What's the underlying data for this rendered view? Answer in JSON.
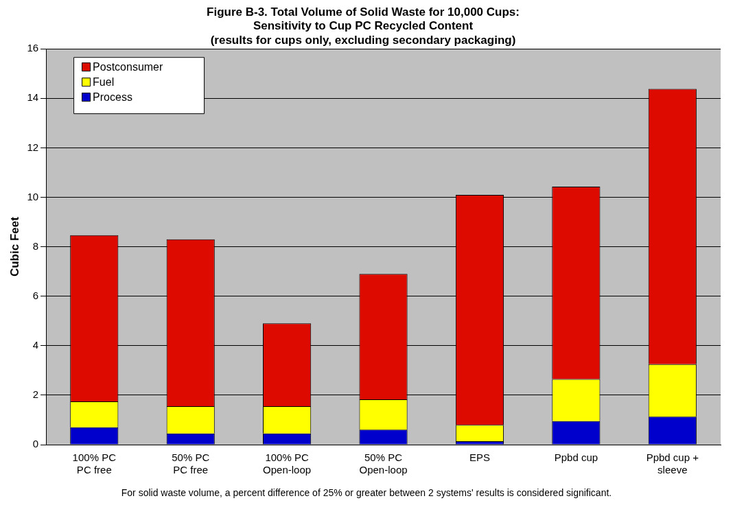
{
  "chart_data": {
    "type": "bar",
    "title": "Figure B-3. Total Volume of Solid Waste for 10,000 Cups:\nSensitivity to Cup PC Recycled Content\n(results for cups only, excluding secondary packaging)",
    "ylabel": "Cubic Feet",
    "categories": [
      "100% PC\nPC free",
      "50% PC\nPC free",
      "100% PC\nOpen-loop",
      "50% PC\nOpen-loop",
      "EPS",
      "Ppbd cup",
      "Ppbd cup +\nsleeve"
    ],
    "series": [
      {
        "name": "Process",
        "color": "#0000cc",
        "values": [
          0.7,
          0.45,
          0.45,
          0.6,
          0.14,
          0.95,
          1.13
        ]
      },
      {
        "name": "Fuel",
        "color": "#ffff00",
        "values": [
          1.05,
          1.1,
          1.1,
          1.23,
          0.66,
          1.7,
          2.12
        ]
      },
      {
        "name": "Postconsumer",
        "color": "#dd0a00",
        "values": [
          6.72,
          6.75,
          3.35,
          5.07,
          9.3,
          7.78,
          11.13
        ]
      }
    ],
    "stacked": true,
    "ylim": [
      0,
      16
    ],
    "yticks": [
      0,
      2,
      4,
      6,
      8,
      10,
      12,
      14,
      16
    ],
    "grid": "y",
    "legend": "top left",
    "annotations": [
      "For solid waste volume, a percent difference of 25% or greater between 2 systems' results is considered significant."
    ]
  }
}
